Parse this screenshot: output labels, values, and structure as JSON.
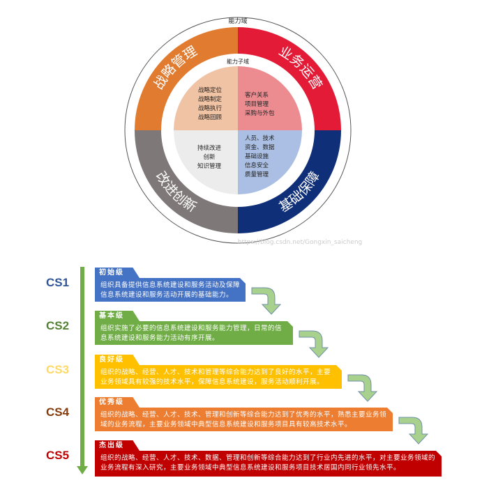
{
  "wheel": {
    "outer_label": "能力域",
    "inner_label": "能力子域",
    "watermark": "https://blog.csdn.net/Gongxin_saicheng",
    "domains": [
      {
        "name": "战略管理",
        "color": "#e07b30",
        "inner_color": "#f0c3a5",
        "items": [
          "战略定位",
          "战略制定",
          "战略执行",
          "战略回顾"
        ]
      },
      {
        "name": "业务运营",
        "color": "#e31b37",
        "inner_color": "#ec8c91",
        "items": [
          "客户关系",
          "项目管理",
          "采购与外包"
        ]
      },
      {
        "name": "基础保障",
        "color": "#0f2f78",
        "inner_color": "#aabfe3",
        "items": [
          "人员、技术",
          "资金、数据",
          "基础设施",
          "信息安全",
          "质量管理"
        ]
      },
      {
        "name": "改进创新",
        "color": "#7f7878",
        "inner_color": "#ececec",
        "items": [
          "持续改进",
          "创新",
          "知识管理"
        ]
      }
    ]
  },
  "levels": [
    {
      "code": "CS1",
      "title": "初始级",
      "color": "#4472c4",
      "code_color": "#2f5597",
      "desc": "组织具备提供信息系统建设和服务活动及保障信息系统建设和服务活动开展的基础能力。"
    },
    {
      "code": "CS2",
      "title": "基本级",
      "color": "#70ad47",
      "code_color": "#548235",
      "desc": "组织实施了必要的信息系统建设和服务能力管理，日常的信息系统建设和服务能力活动有序开展。"
    },
    {
      "code": "CS3",
      "title": "良好级",
      "color": "#ffc000",
      "code_color": "#ffd966",
      "desc": "组织的战略、经营、人才、技术和管理等综合能力达到了良好的水平，主要业务领域具有较强的技术水平，保障信息系统建设，服务活动顺利开展。"
    },
    {
      "code": "CS4",
      "title": "优秀级",
      "color": "#ed7d31",
      "code_color": "#843c0c",
      "desc": "组织的战略、经营、人才、技术、管理和创新等综合能力达到了优秀的水平，熟悉主要业务领域的业务流程，主要业务领域中典型信息系统建设和服务项目具有较高技术水平。"
    },
    {
      "code": "CS5",
      "title": "杰出级",
      "color": "#c00000",
      "code_color": "#c00000",
      "desc": "组织的战略、经营、人才、技术、数据、管理和创新等综合能力达到了行业内先进的水平，对主要业务领域的业务流程有深入研究，主要业务领域中典型信息系统建设和服务项目技术居国内同行业领先水平。"
    }
  ]
}
